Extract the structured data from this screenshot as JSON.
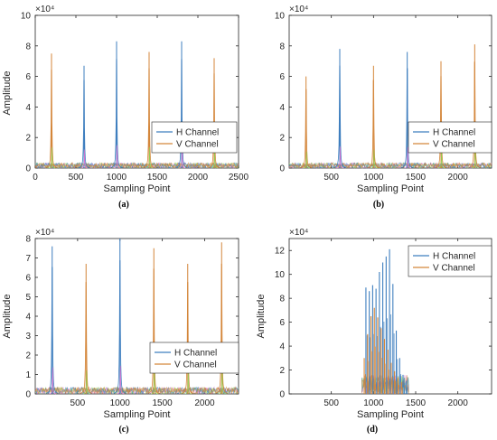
{
  "colors": {
    "h": "#3f7fbf",
    "v": "#d4863a",
    "pink": "#d86fd0",
    "green": "#8fcf4f",
    "axis": "#262626"
  },
  "chart_data": [
    {
      "type": "line",
      "caption": "(a)",
      "xlabel": "Sampling Point",
      "ylabel": "Amplitude",
      "exponent": "×10⁴",
      "xlim": [
        0,
        2500
      ],
      "ylim": [
        0,
        10
      ],
      "xticks": [
        0,
        500,
        1000,
        1500,
        2000,
        2500
      ],
      "yticks": [
        0,
        2,
        4,
        6,
        8,
        10
      ],
      "legend": {
        "placement": "center-right",
        "entries": [
          "H Channel",
          "V Channel"
        ]
      },
      "series": [
        {
          "name": "H Channel",
          "peaks": [
            {
              "x": 600,
              "y": 6.7
            },
            {
              "x": 1000,
              "y": 8.3
            },
            {
              "x": 1800,
              "y": 8.3
            }
          ]
        },
        {
          "name": "V Channel",
          "peaks": [
            {
              "x": 200,
              "y": 7.5
            },
            {
              "x": 1400,
              "y": 7.6
            },
            {
              "x": 2200,
              "y": 7.2
            }
          ]
        }
      ]
    },
    {
      "type": "line",
      "caption": "(b)",
      "xlabel": "Sampling Point",
      "ylabel": "",
      "exponent": "×10⁴",
      "xlim": [
        0,
        2400
      ],
      "ylim": [
        0,
        10
      ],
      "xticks": [
        500,
        1000,
        1500,
        2000
      ],
      "yticks": [
        0,
        2,
        4,
        6,
        8,
        10
      ],
      "legend": {
        "placement": "center-right",
        "entries": [
          "H Channel",
          "V Channel"
        ]
      },
      "series": [
        {
          "name": "H Channel",
          "peaks": [
            {
              "x": 600,
              "y": 7.8
            },
            {
              "x": 1400,
              "y": 7.6
            }
          ]
        },
        {
          "name": "V Channel",
          "peaks": [
            {
              "x": 200,
              "y": 6.0
            },
            {
              "x": 1000,
              "y": 6.7
            },
            {
              "x": 1800,
              "y": 7.0
            },
            {
              "x": 2200,
              "y": 8.1
            }
          ]
        }
      ]
    },
    {
      "type": "line",
      "caption": "(c)",
      "xlabel": "Sampling Point",
      "ylabel": "Amplitude",
      "exponent": "×10⁴",
      "xlim": [
        0,
        2400
      ],
      "ylim": [
        0,
        8
      ],
      "xticks": [
        500,
        1000,
        1500,
        2000
      ],
      "yticks": [
        0,
        1,
        2,
        3,
        4,
        5,
        6,
        7,
        8
      ],
      "legend": {
        "placement": "bottom-right",
        "entries": [
          "H Channel",
          "V Channel"
        ]
      },
      "series": [
        {
          "name": "H Channel",
          "peaks": [
            {
              "x": 200,
              "y": 7.6
            },
            {
              "x": 1000,
              "y": 8.0
            }
          ]
        },
        {
          "name": "V Channel",
          "peaks": [
            {
              "x": 600,
              "y": 6.7
            },
            {
              "x": 1400,
              "y": 7.5
            },
            {
              "x": 1800,
              "y": 6.7
            },
            {
              "x": 2200,
              "y": 7.8
            }
          ]
        }
      ]
    },
    {
      "type": "line",
      "caption": "(d)",
      "xlabel": "Sampling Point",
      "ylabel": "Amplitude",
      "exponent": "×10⁴",
      "xlim": [
        0,
        2400
      ],
      "ylim": [
        0,
        13
      ],
      "xticks": [
        500,
        1000,
        1500,
        2000
      ],
      "yticks": [
        0,
        2,
        4,
        6,
        8,
        10,
        12
      ],
      "legend": {
        "placement": "top-right",
        "entries": [
          "H Channel",
          "V Channel"
        ]
      },
      "series": [
        {
          "name": "H Channel",
          "burst": [
            {
              "x": 910,
              "y": 8.9
            },
            {
              "x": 950,
              "y": 8.6
            },
            {
              "x": 990,
              "y": 9.1
            },
            {
              "x": 1030,
              "y": 8.8
            },
            {
              "x": 1070,
              "y": 10.2
            },
            {
              "x": 1110,
              "y": 11.0
            },
            {
              "x": 1150,
              "y": 11.5
            },
            {
              "x": 1190,
              "y": 12.1
            },
            {
              "x": 1230,
              "y": 9.2
            },
            {
              "x": 1270,
              "y": 5.3
            },
            {
              "x": 1310,
              "y": 3.0
            },
            {
              "x": 1350,
              "y": 1.6
            },
            {
              "x": 1390,
              "y": 1.1
            }
          ]
        },
        {
          "name": "V Channel",
          "burst": [
            {
              "x": 890,
              "y": 3.0
            },
            {
              "x": 930,
              "y": 5.0
            },
            {
              "x": 970,
              "y": 6.5
            },
            {
              "x": 1010,
              "y": 7.2
            },
            {
              "x": 1050,
              "y": 6.4
            },
            {
              "x": 1090,
              "y": 5.5
            },
            {
              "x": 1130,
              "y": 4.6
            },
            {
              "x": 1170,
              "y": 3.7
            },
            {
              "x": 1210,
              "y": 2.6
            },
            {
              "x": 1250,
              "y": 1.9
            },
            {
              "x": 1290,
              "y": 1.4
            },
            {
              "x": 1330,
              "y": 1.0
            }
          ]
        }
      ]
    }
  ]
}
